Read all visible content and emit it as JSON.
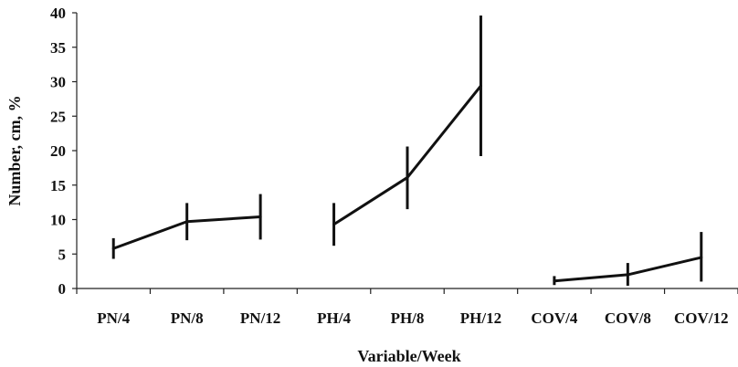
{
  "chart_data": {
    "type": "line",
    "xlabel": "Variable/Week",
    "ylabel": "Number, cm, %",
    "ylim": [
      0,
      40
    ],
    "yticks": [
      0,
      5,
      10,
      15,
      20,
      25,
      30,
      35,
      40
    ],
    "grid": false,
    "categories": [
      "PN/4",
      "PN/8",
      "PN/12",
      "PH/4",
      "PH/8",
      "PH/12",
      "COV/4",
      "COV/8",
      "COV/12"
    ],
    "series": [
      {
        "points": [
          {
            "x": "PN/4",
            "y": 5.8,
            "low": 4.3,
            "high": 7.3
          },
          {
            "x": "PN/8",
            "y": 9.7,
            "low": 7.0,
            "high": 12.4
          },
          {
            "x": "PN/12",
            "y": 10.4,
            "low": 7.1,
            "high": 13.7
          }
        ]
      },
      {
        "points": [
          {
            "x": "PH/4",
            "y": 9.3,
            "low": 6.2,
            "high": 12.4
          },
          {
            "x": "PH/8",
            "y": 16.1,
            "low": 11.5,
            "high": 20.6
          },
          {
            "x": "PH/12",
            "y": 29.4,
            "low": 19.2,
            "high": 39.6
          }
        ]
      },
      {
        "points": [
          {
            "x": "COV/4",
            "y": 1.1,
            "low": 0.5,
            "high": 1.8
          },
          {
            "x": "COV/8",
            "y": 2.0,
            "low": 0.4,
            "high": 3.7
          },
          {
            "x": "COV/12",
            "y": 4.5,
            "low": 1.0,
            "high": 8.2
          }
        ]
      }
    ]
  }
}
